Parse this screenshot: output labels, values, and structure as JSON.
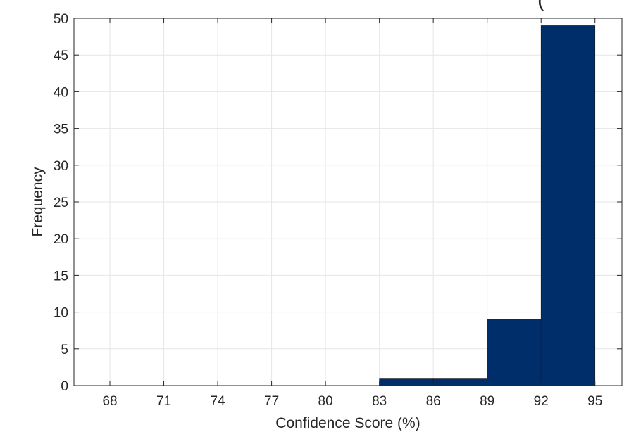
{
  "chart_data": {
    "type": "bar",
    "title": "",
    "xlabel": "Confidence Score (%)",
    "ylabel": "Frequency",
    "bins": [
      {
        "start": 83,
        "end": 86,
        "value": 1
      },
      {
        "start": 86,
        "end": 89,
        "value": 1
      },
      {
        "start": 89,
        "end": 92,
        "value": 9
      },
      {
        "start": 92,
        "end": 95,
        "value": 49
      }
    ],
    "xlim": [
      66,
      96.5
    ],
    "ylim": [
      0,
      50
    ],
    "x_ticks": [
      "68",
      "71",
      "74",
      "77",
      "80",
      "83",
      "86",
      "89",
      "92",
      "95"
    ],
    "y_ticks": [
      "0",
      "5",
      "10",
      "15",
      "20",
      "25",
      "30",
      "35",
      "40",
      "45",
      "50"
    ],
    "grid": true,
    "legend": "none",
    "bar_color": "#002E6B",
    "grid_color": "#E6E6E6",
    "axis_color": "#262626",
    "annotation": "("
  }
}
